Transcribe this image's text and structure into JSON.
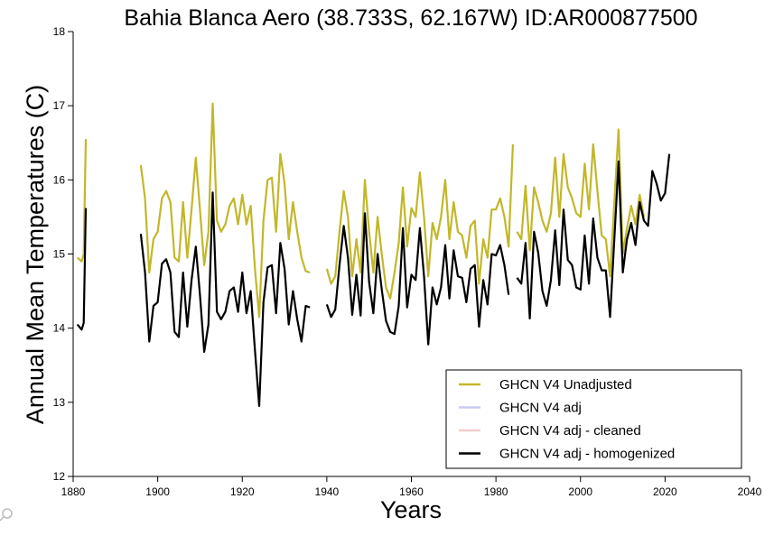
{
  "chart_data": {
    "type": "line",
    "title": "Bahia Blanca Aero (38.733S, 62.167W) ID:AR000877500",
    "xlabel": "Years",
    "ylabel": "Annual Mean Temperatures (C)",
    "xlim": [
      1880,
      2040
    ],
    "ylim": [
      12,
      18
    ],
    "x_ticks": [
      1880,
      1900,
      1920,
      1940,
      1960,
      1980,
      2000,
      2020,
      2040
    ],
    "y_ticks": [
      12,
      13,
      14,
      15,
      16,
      17,
      18
    ],
    "grid": false,
    "legend_position": "bottom-right",
    "series": [
      {
        "name": "GHCN V4 Unadjusted",
        "color": "#c2b72a",
        "segments": [
          [
            [
              1881,
              14.95
            ],
            [
              1882,
              14.9
            ],
            [
              1882.5,
              15.0
            ],
            [
              1883,
              16.55
            ]
          ],
          [
            [
              1896,
              16.2
            ],
            [
              1897,
              15.75
            ],
            [
              1898,
              14.75
            ],
            [
              1899,
              15.2
            ],
            [
              1900,
              15.3
            ],
            [
              1901,
              15.75
            ],
            [
              1902,
              15.85
            ],
            [
              1903,
              15.7
            ],
            [
              1904,
              14.95
            ],
            [
              1905,
              14.9
            ],
            [
              1906,
              15.7
            ],
            [
              1907,
              14.95
            ],
            [
              1908,
              15.6
            ],
            [
              1909,
              16.3
            ],
            [
              1910,
              15.6
            ],
            [
              1911,
              14.85
            ],
            [
              1912,
              15.3
            ],
            [
              1913,
              17.03
            ],
            [
              1914,
              15.45
            ],
            [
              1915,
              15.3
            ],
            [
              1916,
              15.4
            ],
            [
              1917,
              15.65
            ],
            [
              1918,
              15.75
            ],
            [
              1919,
              15.4
            ],
            [
              1920,
              15.8
            ],
            [
              1921,
              15.4
            ],
            [
              1922,
              15.65
            ],
            [
              1923,
              14.8
            ],
            [
              1924,
              14.15
            ],
            [
              1925,
              15.45
            ],
            [
              1926,
              16.0
            ],
            [
              1927,
              16.03
            ],
            [
              1928,
              15.3
            ],
            [
              1929,
              16.35
            ],
            [
              1930,
              15.95
            ],
            [
              1931,
              15.2
            ],
            [
              1932,
              15.7
            ],
            [
              1933,
              15.3
            ],
            [
              1934,
              14.95
            ],
            [
              1935,
              14.77
            ],
            [
              1936,
              14.75
            ]
          ],
          [
            [
              1940,
              14.8
            ],
            [
              1941,
              14.6
            ],
            [
              1942,
              14.7
            ],
            [
              1943,
              15.3
            ],
            [
              1944,
              15.85
            ],
            [
              1945,
              15.5
            ],
            [
              1946,
              14.7
            ],
            [
              1947,
              15.2
            ],
            [
              1948,
              14.75
            ],
            [
              1949,
              16.0
            ],
            [
              1950,
              15.3
            ],
            [
              1951,
              14.75
            ],
            [
              1952,
              15.5
            ],
            [
              1953,
              15.0
            ],
            [
              1954,
              14.55
            ],
            [
              1955,
              14.4
            ],
            [
              1956,
              14.75
            ],
            [
              1957,
              15.15
            ],
            [
              1958,
              15.9
            ],
            [
              1959,
              15.1
            ],
            [
              1960,
              15.62
            ],
            [
              1961,
              15.5
            ],
            [
              1962,
              16.1
            ],
            [
              1963,
              15.5
            ],
            [
              1964,
              14.7
            ],
            [
              1965,
              15.42
            ],
            [
              1966,
              15.2
            ],
            [
              1967,
              15.5
            ],
            [
              1968,
              16.0
            ],
            [
              1969,
              15.2
            ],
            [
              1970,
              15.7
            ],
            [
              1971,
              15.3
            ],
            [
              1972,
              15.25
            ],
            [
              1973,
              14.95
            ],
            [
              1974,
              15.38
            ],
            [
              1975,
              15.45
            ],
            [
              1976,
              14.6
            ],
            [
              1977,
              15.2
            ],
            [
              1978,
              14.95
            ],
            [
              1979,
              15.6
            ],
            [
              1980,
              15.6
            ],
            [
              1981,
              15.75
            ],
            [
              1982,
              15.5
            ],
            [
              1983,
              15.1
            ],
            [
              1984,
              16.48
            ]
          ],
          [
            [
              1985,
              15.3
            ],
            [
              1986,
              15.2
            ],
            [
              1987,
              15.92
            ],
            [
              1988,
              15.05
            ],
            [
              1989,
              15.9
            ],
            [
              1990,
              15.7
            ],
            [
              1991,
              15.45
            ],
            [
              1992,
              15.3
            ],
            [
              1993,
              15.55
            ],
            [
              1994,
              16.3
            ],
            [
              1995,
              15.5
            ],
            [
              1996,
              16.35
            ],
            [
              1997,
              15.9
            ],
            [
              1998,
              15.75
            ],
            [
              1999,
              15.55
            ],
            [
              2000,
              15.5
            ],
            [
              2001,
              16.22
            ],
            [
              2002,
              15.6
            ],
            [
              2003,
              16.48
            ],
            [
              2004,
              15.85
            ],
            [
              2005,
              15.25
            ],
            [
              2006,
              15.2
            ],
            [
              2007,
              14.7
            ],
            [
              2008,
              15.7
            ],
            [
              2009,
              16.68
            ],
            [
              2010,
              15.0
            ],
            [
              2011,
              15.35
            ],
            [
              2012,
              15.65
            ],
            [
              2013,
              15.4
            ],
            [
              2014,
              15.8
            ],
            [
              2015,
              15.5
            ]
          ]
        ]
      },
      {
        "name": "GHCN V4 adj",
        "color": "#c9cbf2",
        "segments": []
      },
      {
        "name": "GHCN V4 adj - cleaned",
        "color": "#f2cccc",
        "segments": []
      },
      {
        "name": "GHCN V4 adj - homogenized",
        "color": "#000000",
        "segments": [
          [
            [
              1881,
              14.05
            ],
            [
              1882,
              13.98
            ],
            [
              1882.5,
              14.07
            ],
            [
              1883,
              15.62
            ]
          ],
          [
            [
              1896,
              15.27
            ],
            [
              1897,
              14.75
            ],
            [
              1898,
              13.82
            ],
            [
              1899,
              14.3
            ],
            [
              1900,
              14.35
            ],
            [
              1901,
              14.87
            ],
            [
              1902,
              14.93
            ],
            [
              1903,
              14.75
            ],
            [
              1904,
              13.95
            ],
            [
              1905,
              13.88
            ],
            [
              1906,
              14.75
            ],
            [
              1907,
              14.02
            ],
            [
              1908,
              14.65
            ],
            [
              1909,
              15.1
            ],
            [
              1910,
              14.45
            ],
            [
              1911,
              13.68
            ],
            [
              1912,
              14.05
            ],
            [
              1913,
              15.83
            ],
            [
              1914,
              14.22
            ],
            [
              1915,
              14.12
            ],
            [
              1916,
              14.22
            ],
            [
              1917,
              14.5
            ],
            [
              1918,
              14.55
            ],
            [
              1919,
              14.22
            ],
            [
              1920,
              14.75
            ],
            [
              1921,
              14.2
            ],
            [
              1922,
              14.5
            ],
            [
              1923,
              13.7
            ],
            [
              1924,
              12.95
            ],
            [
              1925,
              14.35
            ],
            [
              1926,
              14.82
            ],
            [
              1927,
              14.85
            ],
            [
              1928,
              14.2
            ],
            [
              1929,
              15.15
            ],
            [
              1930,
              14.8
            ],
            [
              1931,
              14.05
            ],
            [
              1932,
              14.5
            ],
            [
              1933,
              14.12
            ],
            [
              1934,
              13.82
            ],
            [
              1935,
              14.3
            ],
            [
              1936,
              14.28
            ]
          ],
          [
            [
              1940,
              14.32
            ],
            [
              1941,
              14.15
            ],
            [
              1942,
              14.25
            ],
            [
              1943,
              14.85
            ],
            [
              1944,
              15.38
            ],
            [
              1945,
              14.95
            ],
            [
              1946,
              14.18
            ],
            [
              1947,
              14.72
            ],
            [
              1948,
              14.17
            ],
            [
              1949,
              15.55
            ],
            [
              1950,
              14.62
            ],
            [
              1951,
              14.2
            ],
            [
              1952,
              15.0
            ],
            [
              1953,
              14.52
            ],
            [
              1954,
              14.1
            ],
            [
              1955,
              13.95
            ],
            [
              1956,
              13.92
            ],
            [
              1957,
              14.3
            ],
            [
              1958,
              15.35
            ],
            [
              1959,
              14.28
            ],
            [
              1960,
              14.72
            ],
            [
              1961,
              14.65
            ],
            [
              1962,
              15.35
            ],
            [
              1963,
              14.7
            ],
            [
              1964,
              13.78
            ],
            [
              1965,
              14.55
            ],
            [
              1966,
              14.32
            ],
            [
              1967,
              14.55
            ],
            [
              1968,
              15.12
            ],
            [
              1969,
              14.4
            ],
            [
              1970,
              15.05
            ],
            [
              1971,
              14.7
            ],
            [
              1972,
              14.68
            ],
            [
              1973,
              14.35
            ],
            [
              1974,
              14.8
            ],
            [
              1975,
              14.85
            ],
            [
              1976,
              14.02
            ],
            [
              1977,
              14.65
            ],
            [
              1978,
              14.32
            ],
            [
              1979,
              15.0
            ],
            [
              1980,
              14.98
            ],
            [
              1981,
              15.12
            ],
            [
              1982,
              14.85
            ],
            [
              1983,
              14.45
            ]
          ],
          [
            [
              1985,
              14.68
            ],
            [
              1986,
              14.6
            ],
            [
              1987,
              15.15
            ],
            [
              1988,
              14.13
            ],
            [
              1989,
              15.3
            ],
            [
              1990,
              15.02
            ],
            [
              1991,
              14.5
            ],
            [
              1992,
              14.3
            ],
            [
              1993,
              14.65
            ],
            [
              1994,
              15.32
            ],
            [
              1995,
              14.58
            ],
            [
              1996,
              15.6
            ],
            [
              1997,
              14.92
            ],
            [
              1998,
              14.85
            ],
            [
              1999,
              14.55
            ],
            [
              2000,
              14.52
            ],
            [
              2001,
              15.25
            ],
            [
              2002,
              14.6
            ],
            [
              2003,
              15.48
            ],
            [
              2004,
              14.95
            ],
            [
              2005,
              14.78
            ],
            [
              2006,
              14.78
            ],
            [
              2007,
              14.15
            ],
            [
              2008,
              15.2
            ],
            [
              2009,
              16.25
            ],
            [
              2010,
              14.75
            ],
            [
              2011,
              15.2
            ],
            [
              2012,
              15.42
            ],
            [
              2013,
              15.12
            ],
            [
              2014,
              15.7
            ],
            [
              2015,
              15.45
            ],
            [
              2016,
              15.38
            ],
            [
              2017,
              16.12
            ],
            [
              2018,
              15.95
            ],
            [
              2019,
              15.72
            ],
            [
              2020,
              15.82
            ],
            [
              2021,
              16.35
            ]
          ]
        ]
      }
    ]
  }
}
